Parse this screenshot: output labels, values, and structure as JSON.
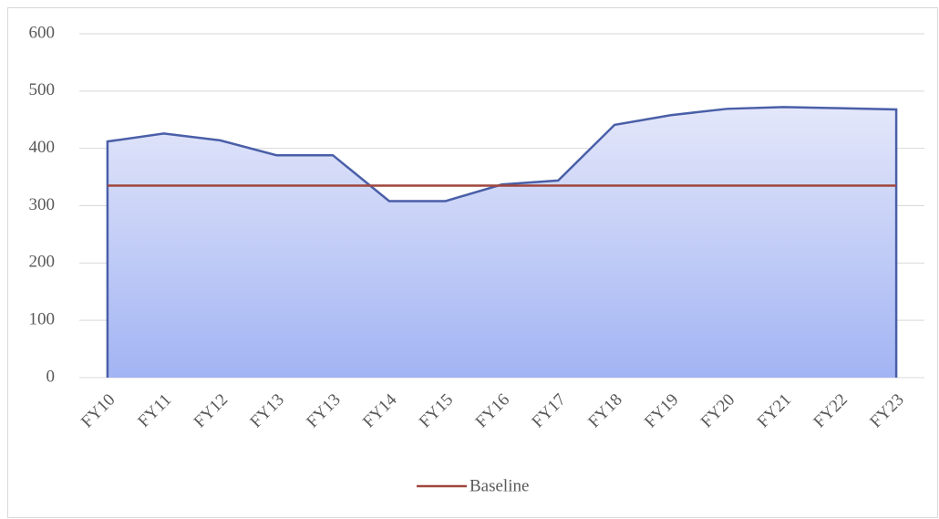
{
  "chart_data": {
    "type": "area",
    "categories": [
      "FY10",
      "FY11",
      "FY12",
      "FY13",
      "FY13",
      "FY14",
      "FY15",
      "FY16",
      "FY17",
      "FY18",
      "FY19",
      "FY20",
      "FY21",
      "FY22",
      "FY23"
    ],
    "series": [
      {
        "type": "area",
        "color": "#4a5fa8",
        "values": [
          412,
          426,
          414,
          388,
          388,
          308,
          308,
          337,
          344,
          441,
          458,
          469,
          472,
          470,
          468
        ]
      },
      {
        "type": "line",
        "name": "Baseline",
        "color": "#a0463d",
        "values": [
          335,
          335,
          335,
          335,
          335,
          335,
          335,
          335,
          335,
          335,
          335,
          335,
          335,
          335,
          335
        ]
      }
    ],
    "ylim": [
      0,
      600
    ],
    "yticks": [
      0,
      100,
      200,
      300,
      400,
      500,
      600
    ],
    "grid": true,
    "legend": "bottom"
  }
}
